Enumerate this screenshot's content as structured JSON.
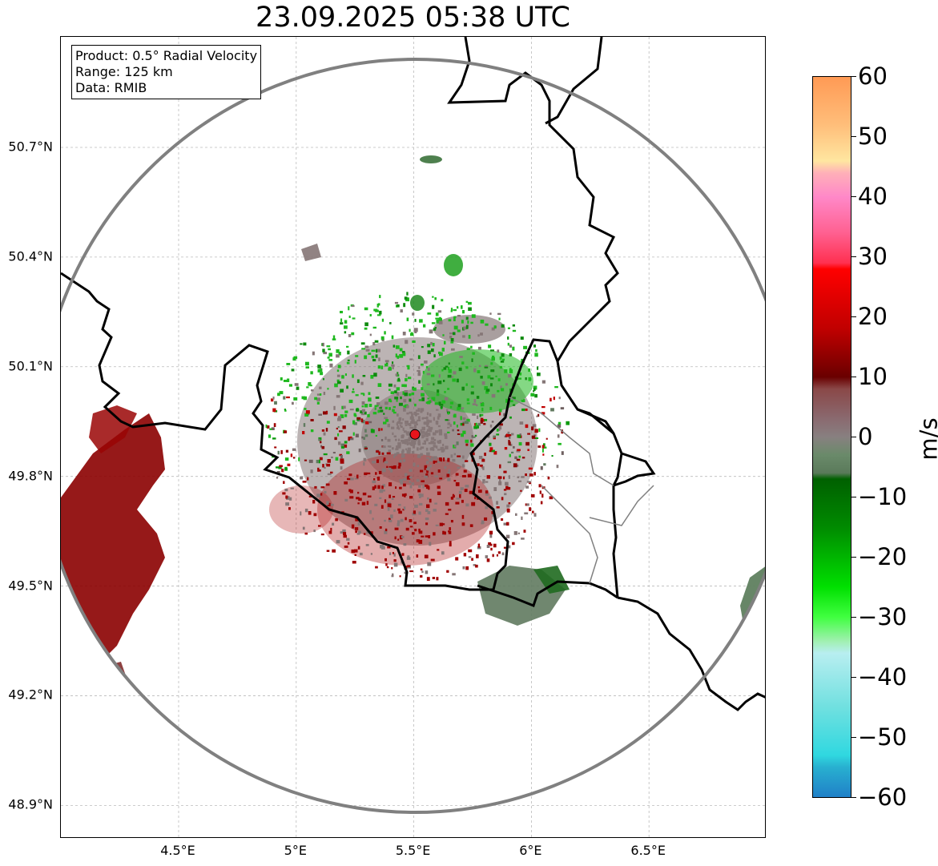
{
  "title": "23.09.2025 05:38 UTC",
  "info_box": {
    "product": "Product: 0.5° Radial Velocity",
    "range": "Range: 125 km",
    "data": "Data: RMIB"
  },
  "map": {
    "lon_range": [
      4.0,
      7.0
    ],
    "lat_range": [
      48.8,
      51.0
    ],
    "lat_ticks": [
      {
        "value": 50.7,
        "label": "50.7°N"
      },
      {
        "value": 50.4,
        "label": "50.4°N"
      },
      {
        "value": 50.1,
        "label": "50.1°N"
      },
      {
        "value": 49.8,
        "label": "49.8°N"
      },
      {
        "value": 49.5,
        "label": "49.5°N"
      },
      {
        "value": 49.2,
        "label": "49.2°N"
      },
      {
        "value": 48.9,
        "label": "48.9°N"
      }
    ],
    "lon_ticks": [
      {
        "value": 4.5,
        "label": "4.5°E"
      },
      {
        "value": 5.0,
        "label": "5°E"
      },
      {
        "value": 5.5,
        "label": "5.5°E"
      },
      {
        "value": 6.0,
        "label": "6°E"
      },
      {
        "value": 6.5,
        "label": "6.5°E"
      }
    ],
    "radar_site": {
      "lon": 5.505,
      "lat": 49.915,
      "color": "#e8141c"
    },
    "range_ring_color": "#808080",
    "border_color": "#000000",
    "gridlines": true,
    "echo_regions": [
      {
        "name": "west-strong-positive",
        "color": "#8b0000"
      },
      {
        "name": "center-near-zero",
        "color": "#857676"
      },
      {
        "name": "north-negative",
        "color": "#1fb81f"
      },
      {
        "name": "southeast-negative",
        "color": "#607a5f"
      },
      {
        "name": "east-edge-negative",
        "color": "#5f7f5f"
      }
    ]
  },
  "colorbar": {
    "unit": "m/s",
    "min": -60,
    "max": 60,
    "ticks": [
      {
        "value": 60,
        "label": "60"
      },
      {
        "value": 50,
        "label": "50"
      },
      {
        "value": 40,
        "label": "40"
      },
      {
        "value": 30,
        "label": "30"
      },
      {
        "value": 20,
        "label": "20"
      },
      {
        "value": 10,
        "label": "10"
      },
      {
        "value": 0,
        "label": "0"
      },
      {
        "value": -10,
        "label": "−10"
      },
      {
        "value": -20,
        "label": "−20"
      },
      {
        "value": -30,
        "label": "−30"
      },
      {
        "value": -40,
        "label": "−40"
      },
      {
        "value": -50,
        "label": "−50"
      },
      {
        "value": -60,
        "label": "−60"
      }
    ],
    "stops": [
      {
        "value": 60,
        "color": "#ff9a55"
      },
      {
        "value": 52,
        "color": "#ffbe7a"
      },
      {
        "value": 46,
        "color": "#ffe6a0"
      },
      {
        "value": 44,
        "color": "#ffb0b8"
      },
      {
        "value": 40,
        "color": "#ff88c8"
      },
      {
        "value": 34,
        "color": "#ff6090"
      },
      {
        "value": 29,
        "color": "#ff3050"
      },
      {
        "value": 28,
        "color": "#ff0000"
      },
      {
        "value": 18,
        "color": "#c00000"
      },
      {
        "value": 10,
        "color": "#6a0000"
      },
      {
        "value": 8,
        "color": "#8a4848"
      },
      {
        "value": 3,
        "color": "#8a6a70"
      },
      {
        "value": 0,
        "color": "#888080"
      },
      {
        "value": -3,
        "color": "#6a8a6a"
      },
      {
        "value": -6,
        "color": "#5a7a5a"
      },
      {
        "value": -7,
        "color": "#006000"
      },
      {
        "value": -15,
        "color": "#008a00"
      },
      {
        "value": -25,
        "color": "#00e000"
      },
      {
        "value": -30,
        "color": "#40ff40"
      },
      {
        "value": -34,
        "color": "#a0f0b0"
      },
      {
        "value": -36,
        "color": "#b8eef0"
      },
      {
        "value": -45,
        "color": "#70e0e0"
      },
      {
        "value": -53,
        "color": "#30d8e0"
      },
      {
        "value": -55,
        "color": "#28b0d0"
      },
      {
        "value": -60,
        "color": "#2080c8"
      }
    ]
  }
}
